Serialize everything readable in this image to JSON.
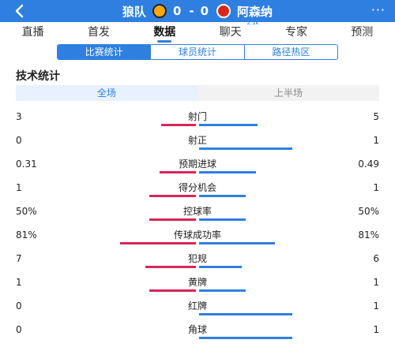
{
  "header": {
    "home_team": "狼队",
    "home_score": "0",
    "separator": "-",
    "away_score": "0",
    "away_team": "阿森纳",
    "more_label": "···"
  },
  "tabs": [
    {
      "label": "直播"
    },
    {
      "label": "首发"
    },
    {
      "label": "数据"
    },
    {
      "label": "聊天",
      "badge": "2.1k"
    },
    {
      "label": "专家"
    },
    {
      "label": "预测"
    }
  ],
  "segments": [
    {
      "label": "比赛统计"
    },
    {
      "label": "球员统计"
    },
    {
      "label": "路径热区"
    }
  ],
  "section_title": "技术统计",
  "periods": [
    {
      "label": "全场"
    },
    {
      "label": "上半场"
    }
  ],
  "stats": [
    {
      "label": "射门",
      "home": "3",
      "away": "5",
      "home_share": 0.375,
      "away_share": 0.625
    },
    {
      "label": "射正",
      "home": "0",
      "away": "1",
      "home_share": 0.0,
      "away_share": 1.0
    },
    {
      "label": "预期进球",
      "home": "0.31",
      "away": "0.49",
      "home_share": 0.39,
      "away_share": 0.61
    },
    {
      "label": "得分机会",
      "home": "1",
      "away": "1",
      "home_share": 0.5,
      "away_share": 0.5
    },
    {
      "label": "控球率",
      "home": "50%",
      "away": "50%",
      "home_share": 0.5,
      "away_share": 0.5
    },
    {
      "label": "传球成功率",
      "home": "81%",
      "away": "81%",
      "home_share": 0.81,
      "away_share": 0.81
    },
    {
      "label": "犯规",
      "home": "7",
      "away": "6",
      "home_share": 0.54,
      "away_share": 0.46
    },
    {
      "label": "黄牌",
      "home": "1",
      "away": "1",
      "home_share": 0.5,
      "away_share": 0.5
    },
    {
      "label": "红牌",
      "home": "0",
      "away": "1",
      "home_share": 0.0,
      "away_share": 1.0
    },
    {
      "label": "角球",
      "home": "0",
      "away": "1",
      "home_share": 0.0,
      "away_share": 1.0
    }
  ],
  "colors": {
    "accent": "#2f7fe0",
    "home_bar": "#d6265a",
    "away_bar": "#2f7fe0"
  }
}
